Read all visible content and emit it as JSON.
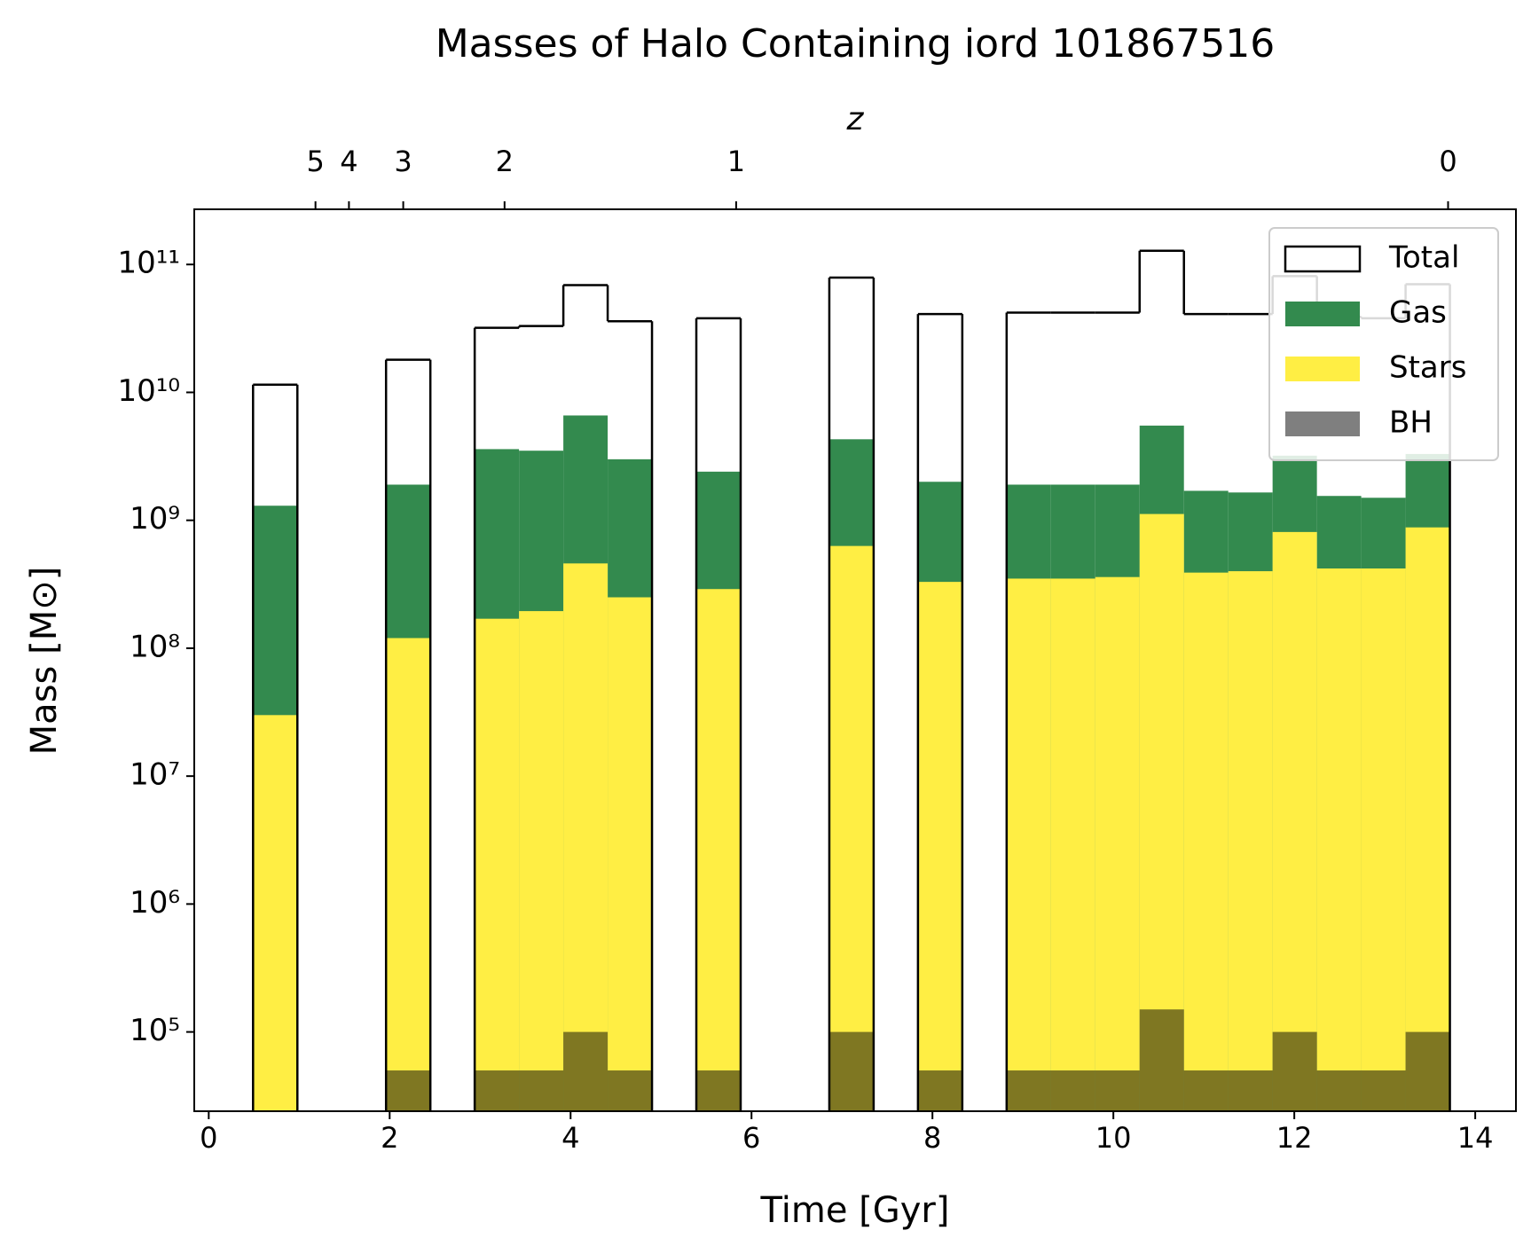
{
  "chart_data": {
    "type": "histogram",
    "title": "Masses of Halo Containing iord 101867516",
    "xlabel": "Time [Gyr]",
    "ylabel": "Mass [M⊙]",
    "x2label": "z",
    "log_y": true,
    "legend": "upper right",
    "bins": [
      0.49,
      0.98,
      1.47,
      1.96,
      2.45,
      2.94,
      3.43,
      3.92,
      4.41,
      4.9,
      5.39,
      5.88,
      6.37,
      6.86,
      7.35,
      7.84,
      8.33,
      8.82,
      9.31,
      9.8,
      10.29,
      10.78,
      11.27,
      11.76,
      12.25,
      12.74,
      13.23,
      13.72
    ],
    "series": [
      {
        "name": "Total",
        "style": "step",
        "color": "#000000",
        "values": [
          11500000000,
          null,
          null,
          18000000000,
          null,
          32000000000,
          33000000000,
          69000000000,
          36000000000,
          null,
          38000000000,
          null,
          null,
          79000000000,
          null,
          41000000000,
          null,
          42000000000,
          42000000000,
          42000000000,
          128000000000,
          41000000000,
          41000000000,
          81000000000,
          39000000000,
          38000000000,
          70000000000
        ]
      },
      {
        "name": "Gas",
        "style": "filled",
        "color": "#338a4e",
        "values": [
          1300000000,
          null,
          null,
          1900000000,
          null,
          3600000000,
          3500000000,
          6600000000,
          3000000000,
          null,
          2400000000,
          null,
          null,
          4300000000,
          null,
          2000000000,
          null,
          1900000000,
          1900000000,
          1900000000,
          5500000000,
          1700000000,
          1650000000,
          3200000000,
          1550000000,
          1500000000,
          3300000000
        ]
      },
      {
        "name": "Stars",
        "style": "filled",
        "color": "#ffee44",
        "values": [
          30000000,
          null,
          null,
          120000000,
          null,
          170000000,
          195000000,
          460000000,
          250000000,
          null,
          290000000,
          null,
          null,
          630000000,
          null,
          330000000,
          null,
          350000000,
          350000000,
          360000000,
          1120000000,
          390000000,
          400000000,
          810000000,
          420000000,
          420000000,
          880000000
        ]
      },
      {
        "name": "BH",
        "style": "filled",
        "color": "#000000",
        "opacity": 0.5,
        "values": [
          null,
          null,
          null,
          50000,
          null,
          50000,
          50000,
          100000,
          50000,
          null,
          50000,
          null,
          null,
          100000,
          null,
          50000,
          null,
          50000,
          50000,
          50000,
          150000,
          50000,
          50000,
          100000,
          50000,
          50000,
          100000
        ]
      }
    ],
    "xlim": [
      -0.16,
      14.45
    ],
    "ylim": [
      24000,
      270000000000
    ],
    "xticks": [
      0,
      2,
      4,
      6,
      8,
      10,
      12,
      14
    ],
    "yticks": [
      {
        "value": 100000,
        "label": "10⁵"
      },
      {
        "value": 1000000,
        "label": "10⁶"
      },
      {
        "value": 10000000,
        "label": "10⁷"
      },
      {
        "value": 100000000,
        "label": "10⁸"
      },
      {
        "value": 1000000000,
        "label": "10⁹"
      },
      {
        "value": 10000000000,
        "label": "10¹⁰"
      },
      {
        "value": 100000000000,
        "label": "10¹¹"
      }
    ],
    "x2ticks": [
      {
        "value": 1.18,
        "label": "5"
      },
      {
        "value": 1.55,
        "label": "4"
      },
      {
        "value": 2.15,
        "label": "3"
      },
      {
        "value": 3.27,
        "label": "2"
      },
      {
        "value": 5.83,
        "label": "1"
      },
      {
        "value": 13.7,
        "label": "0"
      }
    ]
  }
}
